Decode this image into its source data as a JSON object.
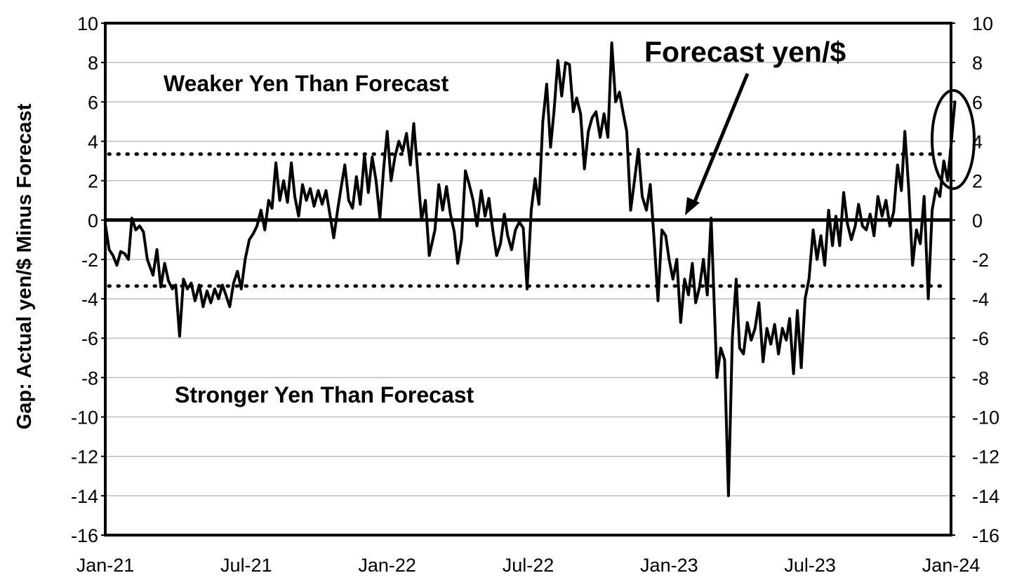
{
  "chart_data": {
    "type": "line",
    "title": "",
    "xlabel": "",
    "ylabel": "Gap: Actual yen/$ Minus Forecast",
    "ylim": [
      -16,
      10
    ],
    "y_ticks": [
      "10",
      "8",
      "6",
      "4",
      "2",
      "0",
      "-2",
      "-4",
      "-6",
      "-8",
      "-10",
      "-12",
      "-14",
      "-16"
    ],
    "x_range": [
      "2021-01",
      "2024-01"
    ],
    "x_ticks": [
      "Jan-21",
      "Jul-21",
      "Jan-22",
      "Jul-22",
      "Jan-23",
      "Jul-23",
      "Jan-24"
    ],
    "grid": true,
    "reference_lines": {
      "zero": 0,
      "upper_band": 3.35,
      "lower_band": -3.35
    },
    "annotations": {
      "upper": "Weaker Yen Than Forecast",
      "lower": "Stronger Yen Than Forecast",
      "arrow": "Forecast yen/$"
    },
    "series": [
      {
        "color": "#000000",
        "points": [
          [
            "2021-01-01",
            -0.2
          ],
          [
            "2021-01-06",
            -1.5
          ],
          [
            "2021-01-11",
            -1.8
          ],
          [
            "2021-01-16",
            -2.3
          ],
          [
            "2021-01-21",
            -1.6
          ],
          [
            "2021-01-26",
            -1.7
          ],
          [
            "2021-01-31",
            -2.0
          ],
          [
            "2021-02-05",
            0.1
          ],
          [
            "2021-02-10",
            -0.5
          ],
          [
            "2021-02-15",
            -0.3
          ],
          [
            "2021-02-20",
            -0.6
          ],
          [
            "2021-02-25",
            -2.0
          ],
          [
            "2021-03-02",
            -2.8
          ],
          [
            "2021-03-07",
            -1.5
          ],
          [
            "2021-03-12",
            -3.4
          ],
          [
            "2021-03-17",
            -2.2
          ],
          [
            "2021-03-22",
            -3.1
          ],
          [
            "2021-03-27",
            -3.5
          ],
          [
            "2021-04-01",
            -3.3
          ],
          [
            "2021-04-06",
            -5.9
          ],
          [
            "2021-04-11",
            -3.0
          ],
          [
            "2021-04-16",
            -3.5
          ],
          [
            "2021-04-21",
            -3.2
          ],
          [
            "2021-04-26",
            -4.1
          ],
          [
            "2021-05-01",
            -3.3
          ],
          [
            "2021-05-06",
            -4.4
          ],
          [
            "2021-05-11",
            -3.6
          ],
          [
            "2021-05-16",
            -4.2
          ],
          [
            "2021-05-21",
            -3.5
          ],
          [
            "2021-05-26",
            -4.0
          ],
          [
            "2021-05-31",
            -3.3
          ],
          [
            "2021-06-05",
            -3.8
          ],
          [
            "2021-06-10",
            -4.4
          ],
          [
            "2021-06-15",
            -3.2
          ],
          [
            "2021-06-20",
            -2.6
          ],
          [
            "2021-06-25",
            -3.5
          ],
          [
            "2021-06-30",
            -2.0
          ],
          [
            "2021-07-05",
            -1.0
          ],
          [
            "2021-07-10",
            -0.7
          ],
          [
            "2021-07-15",
            -0.3
          ],
          [
            "2021-07-20",
            0.5
          ],
          [
            "2021-07-25",
            -0.5
          ],
          [
            "2021-07-30",
            1.0
          ],
          [
            "2021-08-04",
            0.6
          ],
          [
            "2021-08-09",
            2.9
          ],
          [
            "2021-08-14",
            1.0
          ],
          [
            "2021-08-19",
            2.0
          ],
          [
            "2021-08-24",
            0.9
          ],
          [
            "2021-08-29",
            2.9
          ],
          [
            "2021-09-03",
            1.2
          ],
          [
            "2021-09-08",
            0.2
          ],
          [
            "2021-09-13",
            1.8
          ],
          [
            "2021-09-18",
            1.0
          ],
          [
            "2021-09-23",
            1.6
          ],
          [
            "2021-09-28",
            0.7
          ],
          [
            "2021-10-03",
            1.5
          ],
          [
            "2021-10-08",
            0.8
          ],
          [
            "2021-10-13",
            1.5
          ],
          [
            "2021-10-18",
            0.3
          ],
          [
            "2021-10-23",
            -0.9
          ],
          [
            "2021-10-28",
            0.5
          ],
          [
            "2021-11-02",
            1.6
          ],
          [
            "2021-11-07",
            2.8
          ],
          [
            "2021-11-12",
            1.0
          ],
          [
            "2021-11-17",
            0.6
          ],
          [
            "2021-11-22",
            2.2
          ],
          [
            "2021-11-27",
            0.8
          ],
          [
            "2021-12-02",
            3.3
          ],
          [
            "2021-12-07",
            1.4
          ],
          [
            "2021-12-12",
            3.2
          ],
          [
            "2021-12-17",
            2.0
          ],
          [
            "2021-12-22",
            0.1
          ],
          [
            "2021-12-27",
            2.7
          ],
          [
            "2022-01-01",
            4.5
          ],
          [
            "2022-01-06",
            2.0
          ],
          [
            "2022-01-11",
            3.2
          ],
          [
            "2022-01-16",
            4.0
          ],
          [
            "2022-01-21",
            3.5
          ],
          [
            "2022-01-26",
            4.4
          ],
          [
            "2022-01-31",
            2.8
          ],
          [
            "2022-02-05",
            4.9
          ],
          [
            "2022-02-10",
            2.5
          ],
          [
            "2022-02-15",
            0.0
          ],
          [
            "2022-02-20",
            1.0
          ],
          [
            "2022-02-25",
            -1.8
          ],
          [
            "2022-03-02",
            -0.5
          ],
          [
            "2022-03-07",
            1.8
          ],
          [
            "2022-03-12",
            0.5
          ],
          [
            "2022-03-17",
            1.7
          ],
          [
            "2022-03-22",
            0.3
          ],
          [
            "2022-03-27",
            -0.6
          ],
          [
            "2022-04-01",
            -2.2
          ],
          [
            "2022-04-06",
            -1.0
          ],
          [
            "2022-04-11",
            2.5
          ],
          [
            "2022-04-16",
            1.8
          ],
          [
            "2022-04-21",
            1.0
          ],
          [
            "2022-04-26",
            -0.3
          ],
          [
            "2022-05-01",
            1.5
          ],
          [
            "2022-05-06",
            0.2
          ],
          [
            "2022-05-11",
            1.1
          ],
          [
            "2022-05-16",
            -0.5
          ],
          [
            "2022-05-21",
            -1.8
          ],
          [
            "2022-05-26",
            -1.2
          ],
          [
            "2022-05-31",
            0.3
          ],
          [
            "2022-06-05",
            -0.8
          ],
          [
            "2022-06-10",
            -1.5
          ],
          [
            "2022-06-15",
            -0.5
          ],
          [
            "2022-06-20",
            -0.1
          ],
          [
            "2022-06-25",
            -0.4
          ],
          [
            "2022-06-30",
            -3.5
          ],
          [
            "2022-07-05",
            0.5
          ],
          [
            "2022-07-10",
            2.1
          ],
          [
            "2022-07-15",
            0.8
          ],
          [
            "2022-07-20",
            5.0
          ],
          [
            "2022-07-25",
            6.9
          ],
          [
            "2022-07-30",
            3.7
          ],
          [
            "2022-08-04",
            5.5
          ],
          [
            "2022-08-09",
            8.1
          ],
          [
            "2022-08-14",
            6.3
          ],
          [
            "2022-08-19",
            8.0
          ],
          [
            "2022-08-24",
            7.9
          ],
          [
            "2022-08-29",
            5.5
          ],
          [
            "2022-09-03",
            6.2
          ],
          [
            "2022-09-08",
            5.4
          ],
          [
            "2022-09-13",
            2.6
          ],
          [
            "2022-09-18",
            4.5
          ],
          [
            "2022-09-23",
            5.2
          ],
          [
            "2022-09-28",
            5.5
          ],
          [
            "2022-10-03",
            4.2
          ],
          [
            "2022-10-08",
            5.4
          ],
          [
            "2022-10-13",
            4.2
          ],
          [
            "2022-10-18",
            9.0
          ],
          [
            "2022-10-23",
            6.0
          ],
          [
            "2022-10-28",
            6.5
          ],
          [
            "2022-11-02",
            5.5
          ],
          [
            "2022-11-07",
            4.5
          ],
          [
            "2022-11-12",
            0.5
          ],
          [
            "2022-11-17",
            2.0
          ],
          [
            "2022-11-22",
            3.6
          ],
          [
            "2022-11-27",
            1.2
          ],
          [
            "2022-12-02",
            0.5
          ],
          [
            "2022-12-07",
            1.8
          ],
          [
            "2022-12-12",
            -1.0
          ],
          [
            "2022-12-17",
            -4.1
          ],
          [
            "2022-12-22",
            -0.5
          ],
          [
            "2022-12-27",
            -0.8
          ],
          [
            "2023-01-01",
            -2.0
          ],
          [
            "2023-01-06",
            -3.0
          ],
          [
            "2023-01-11",
            -2.0
          ],
          [
            "2023-01-16",
            -5.2
          ],
          [
            "2023-01-21",
            -3.0
          ],
          [
            "2023-01-26",
            -3.8
          ],
          [
            "2023-01-31",
            -2.2
          ],
          [
            "2023-02-05",
            -4.2
          ],
          [
            "2023-02-10",
            -3.4
          ],
          [
            "2023-02-15",
            -2.0
          ],
          [
            "2023-02-20",
            -3.8
          ],
          [
            "2023-02-25",
            0.1
          ],
          [
            "2023-03-02",
            -8.0
          ],
          [
            "2023-03-07",
            -6.5
          ],
          [
            "2023-03-12",
            -7.1
          ],
          [
            "2023-03-17",
            -14.0
          ],
          [
            "2023-03-22",
            -6.0
          ],
          [
            "2023-03-27",
            -3.0
          ],
          [
            "2023-04-01",
            -6.5
          ],
          [
            "2023-04-06",
            -6.8
          ],
          [
            "2023-04-11",
            -5.2
          ],
          [
            "2023-04-16",
            -6.1
          ],
          [
            "2023-04-21",
            -5.5
          ],
          [
            "2023-04-26",
            -4.2
          ],
          [
            "2023-05-01",
            -7.2
          ],
          [
            "2023-05-06",
            -5.5
          ],
          [
            "2023-05-11",
            -6.3
          ],
          [
            "2023-05-16",
            -5.3
          ],
          [
            "2023-05-21",
            -6.8
          ],
          [
            "2023-05-26",
            -5.5
          ],
          [
            "2023-05-31",
            -6.1
          ],
          [
            "2023-06-05",
            -5.0
          ],
          [
            "2023-06-10",
            -7.8
          ],
          [
            "2023-06-15",
            -4.6
          ],
          [
            "2023-06-20",
            -7.5
          ],
          [
            "2023-06-25",
            -4.0
          ],
          [
            "2023-06-30",
            -3.0
          ],
          [
            "2023-07-05",
            -0.5
          ],
          [
            "2023-07-10",
            -2.0
          ],
          [
            "2023-07-15",
            -0.8
          ],
          [
            "2023-07-20",
            -2.3
          ],
          [
            "2023-07-25",
            0.5
          ],
          [
            "2023-07-30",
            -1.3
          ],
          [
            "2023-08-04",
            0.2
          ],
          [
            "2023-08-09",
            -1.3
          ],
          [
            "2023-08-14",
            1.4
          ],
          [
            "2023-08-19",
            -0.2
          ],
          [
            "2023-08-24",
            -1.0
          ],
          [
            "2023-08-29",
            -0.3
          ],
          [
            "2023-09-03",
            0.8
          ],
          [
            "2023-09-08",
            -0.3
          ],
          [
            "2023-09-13",
            -0.5
          ],
          [
            "2023-09-18",
            0.3
          ],
          [
            "2023-09-23",
            -0.8
          ],
          [
            "2023-09-28",
            1.2
          ],
          [
            "2023-10-03",
            0.2
          ],
          [
            "2023-10-08",
            1.0
          ],
          [
            "2023-10-13",
            -0.3
          ],
          [
            "2023-10-18",
            0.4
          ],
          [
            "2023-10-23",
            2.8
          ],
          [
            "2023-10-28",
            1.5
          ],
          [
            "2023-11-02",
            4.5
          ],
          [
            "2023-11-07",
            1.6
          ],
          [
            "2023-11-12",
            -2.3
          ],
          [
            "2023-11-17",
            -0.5
          ],
          [
            "2023-11-22",
            -1.2
          ],
          [
            "2023-11-27",
            1.2
          ],
          [
            "2023-12-02",
            -4.0
          ],
          [
            "2023-12-07",
            0.5
          ],
          [
            "2023-12-12",
            1.6
          ],
          [
            "2023-12-17",
            1.2
          ],
          [
            "2023-12-22",
            3.0
          ],
          [
            "2023-12-27",
            2.0
          ],
          [
            "2024-01-01",
            3.8
          ],
          [
            "2024-01-06",
            6.0
          ]
        ]
      }
    ]
  }
}
